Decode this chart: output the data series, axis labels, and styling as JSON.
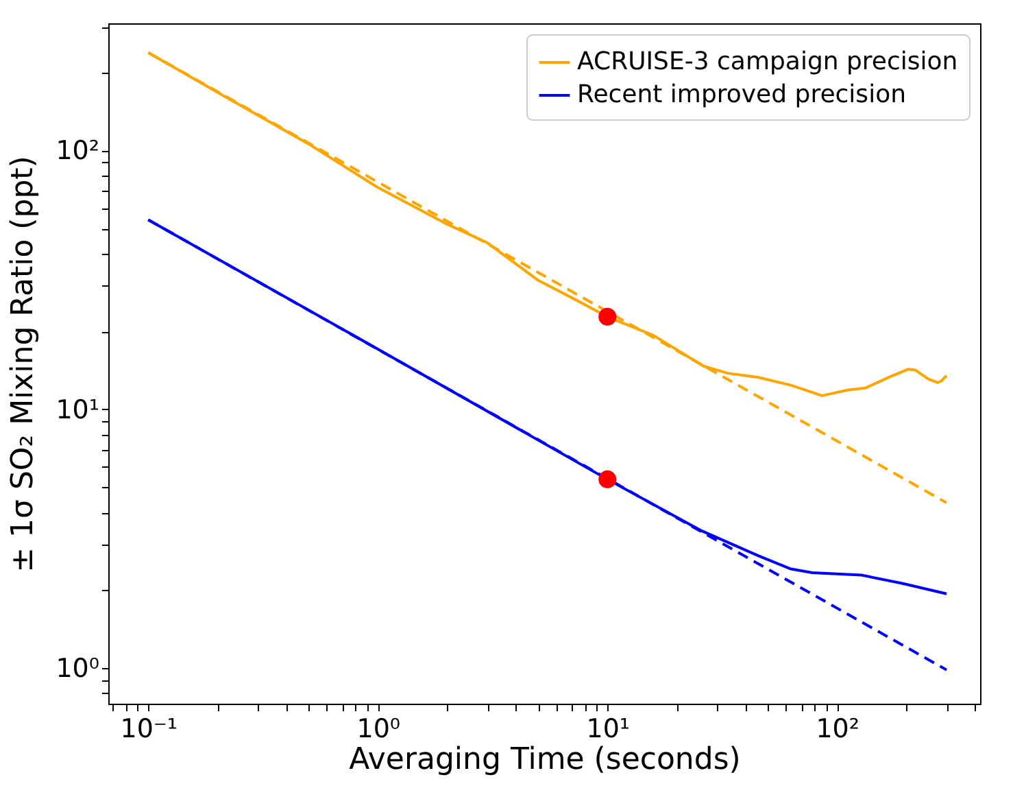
{
  "chart_data": {
    "type": "line",
    "xlabel": "Averaging Time (seconds)",
    "ylabel": "± 1σ SO₂ Mixing Ratio (ppt)",
    "log": "xy",
    "legend": "top right",
    "xlim": [
      0.067,
      420
    ],
    "ylim": [
      0.73,
      310
    ],
    "xticks": [
      {
        "value": 0.07,
        "label": null
      },
      {
        "value": 0.08,
        "label": null
      },
      {
        "value": 0.09,
        "label": null
      },
      {
        "value": 0.1,
        "label": "10⁻¹"
      },
      {
        "value": 0.2,
        "label": null
      },
      {
        "value": 0.3,
        "label": null
      },
      {
        "value": 0.4,
        "label": null
      },
      {
        "value": 0.5,
        "label": null
      },
      {
        "value": 0.6,
        "label": null
      },
      {
        "value": 0.7,
        "label": null
      },
      {
        "value": 0.8,
        "label": null
      },
      {
        "value": 0.9,
        "label": null
      },
      {
        "value": 1,
        "label": "10⁰"
      },
      {
        "value": 2,
        "label": null
      },
      {
        "value": 3,
        "label": null
      },
      {
        "value": 4,
        "label": null
      },
      {
        "value": 5,
        "label": null
      },
      {
        "value": 6,
        "label": null
      },
      {
        "value": 7,
        "label": null
      },
      {
        "value": 8,
        "label": null
      },
      {
        "value": 9,
        "label": null
      },
      {
        "value": 10,
        "label": "10¹"
      },
      {
        "value": 20,
        "label": null
      },
      {
        "value": 30,
        "label": null
      },
      {
        "value": 40,
        "label": null
      },
      {
        "value": 50,
        "label": null
      },
      {
        "value": 60,
        "label": null
      },
      {
        "value": 70,
        "label": null
      },
      {
        "value": 80,
        "label": null
      },
      {
        "value": 90,
        "label": null
      },
      {
        "value": 100,
        "label": "10²"
      },
      {
        "value": 200,
        "label": null
      },
      {
        "value": 300,
        "label": null
      },
      {
        "value": 400,
        "label": null
      }
    ],
    "yticks": [
      {
        "value": 0.8,
        "label": null
      },
      {
        "value": 0.9,
        "label": null
      },
      {
        "value": 1,
        "label": "10⁰"
      },
      {
        "value": 2,
        "label": null
      },
      {
        "value": 3,
        "label": null
      },
      {
        "value": 4,
        "label": null
      },
      {
        "value": 5,
        "label": null
      },
      {
        "value": 6,
        "label": null
      },
      {
        "value": 7,
        "label": null
      },
      {
        "value": 8,
        "label": null
      },
      {
        "value": 9,
        "label": null
      },
      {
        "value": 10,
        "label": "10¹"
      },
      {
        "value": 20,
        "label": null
      },
      {
        "value": 30,
        "label": null
      },
      {
        "value": 40,
        "label": null
      },
      {
        "value": 50,
        "label": null
      },
      {
        "value": 60,
        "label": null
      },
      {
        "value": 70,
        "label": null
      },
      {
        "value": 80,
        "label": null
      },
      {
        "value": 90,
        "label": null
      },
      {
        "value": 100,
        "label": "10²"
      },
      {
        "value": 200,
        "label": null
      },
      {
        "value": 300,
        "label": null
      }
    ],
    "series": [
      {
        "name": "ACRUISE-3 campaign precision",
        "color": "#ffa500",
        "x": [
          0.1,
          0.2,
          0.5,
          1,
          2,
          3,
          5,
          7,
          10,
          15.9,
          26.2,
          33.4,
          45.5,
          63,
          86,
          112,
          133,
          168,
          204,
          219,
          250,
          275,
          285,
          300
        ],
        "values": [
          239,
          168,
          106,
          72,
          52,
          44,
          31.5,
          27,
          22.8,
          19.3,
          14.7,
          13.8,
          13.3,
          12.4,
          11.3,
          11.9,
          12.1,
          13.3,
          14.3,
          14.2,
          13.1,
          12.7,
          12.9,
          13.5
        ]
      },
      {
        "name": "Recent improved precision",
        "color": "#0000ff",
        "x": [
          0.1,
          1,
          10,
          25.5,
          45.5,
          63,
          78,
          128,
          192,
          300
        ],
        "values": [
          54,
          17.1,
          5.37,
          3.41,
          2.72,
          2.42,
          2.34,
          2.29,
          2.13,
          1.94
        ]
      },
      {
        "color": "#ffa500",
        "line_style": "dashed",
        "x": [
          0.1,
          300
        ],
        "values": [
          239,
          4.36
        ]
      },
      {
        "color": "#0000ff",
        "line_style": "dashed",
        "x": [
          0.1,
          300
        ],
        "values": [
          54,
          0.986
        ]
      },
      {
        "color": "#ff0000",
        "type": "scatter",
        "marker": "circle",
        "x": [
          10,
          10
        ],
        "values": [
          22.8,
          5.37
        ]
      }
    ]
  }
}
